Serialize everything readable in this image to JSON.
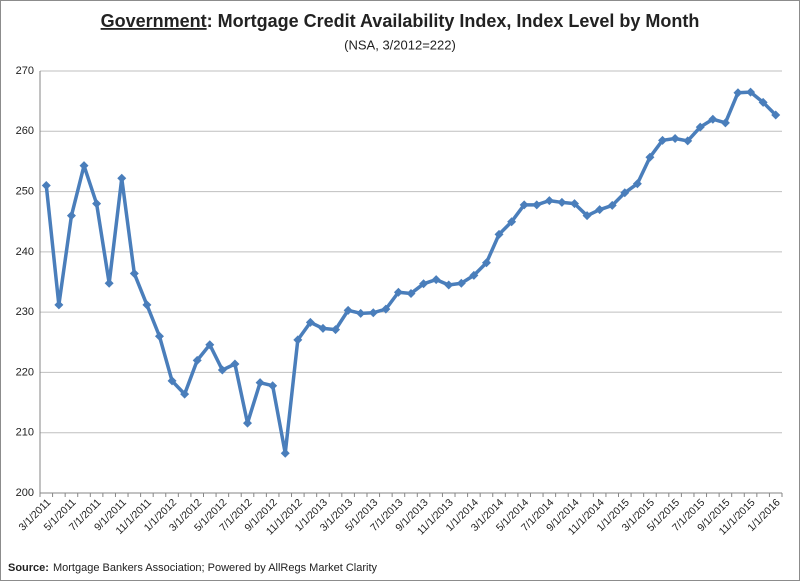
{
  "chart_data": {
    "type": "line",
    "title": "Government: Mortgage Credit Availability Index, Index Level by Month",
    "subtitle": "(NSA, 3/2012=222)",
    "source_label": "Source:",
    "source": "Mortgage Bankers Association; Powered by AllRegs Market Clarity",
    "categories": [
      "3/1/2011",
      null,
      "5/1/2011",
      null,
      "7/1/2011",
      null,
      "9/1/2011",
      null,
      "11/1/2011",
      null,
      "1/1/2012",
      null,
      "3/1/2012",
      null,
      "5/1/2012",
      null,
      "7/1/2012",
      null,
      "9/1/2012",
      null,
      "11/1/2012",
      null,
      "1/1/2013",
      null,
      "3/1/2013",
      null,
      "5/1/2013",
      null,
      "7/1/2013",
      null,
      "9/1/2013",
      null,
      "11/1/2013",
      null,
      "1/1/2014",
      null,
      "3/1/2014",
      null,
      "5/1/2014",
      null,
      "7/1/2014",
      null,
      "9/1/2014",
      null,
      "11/1/2014",
      null,
      "1/1/2015",
      null,
      "3/1/2015",
      null,
      "5/1/2015",
      null,
      "7/1/2015",
      null,
      "9/1/2015",
      null,
      "11/1/2015",
      null,
      "1/1/2016"
    ],
    "values": [
      251,
      231.2,
      246,
      254.3,
      248,
      234.8,
      252.2,
      236.4,
      231.2,
      226,
      218.6,
      216.4,
      222,
      224.6,
      220.4,
      221.4,
      211.6,
      218.3,
      217.8,
      206.6,
      225.4,
      228.3,
      227.3,
      227.1,
      230.3,
      229.8,
      229.9,
      230.5,
      233.3,
      233.1,
      234.7,
      235.4,
      234.5,
      234.8,
      236.1,
      238.2,
      242.9,
      245,
      247.8,
      247.8,
      248.5,
      248.2,
      248,
      246,
      247,
      247.7,
      249.8,
      251.3,
      255.7,
      258.5,
      258.8,
      258.4,
      260.7,
      262,
      261.4,
      266.4,
      266.5,
      264.8,
      262.7
    ],
    "color": "#4a7ebb",
    "ylim": [
      200,
      270
    ],
    "yticks": [
      200,
      210,
      220,
      230,
      240,
      250,
      260,
      270
    ],
    "grid": true
  }
}
